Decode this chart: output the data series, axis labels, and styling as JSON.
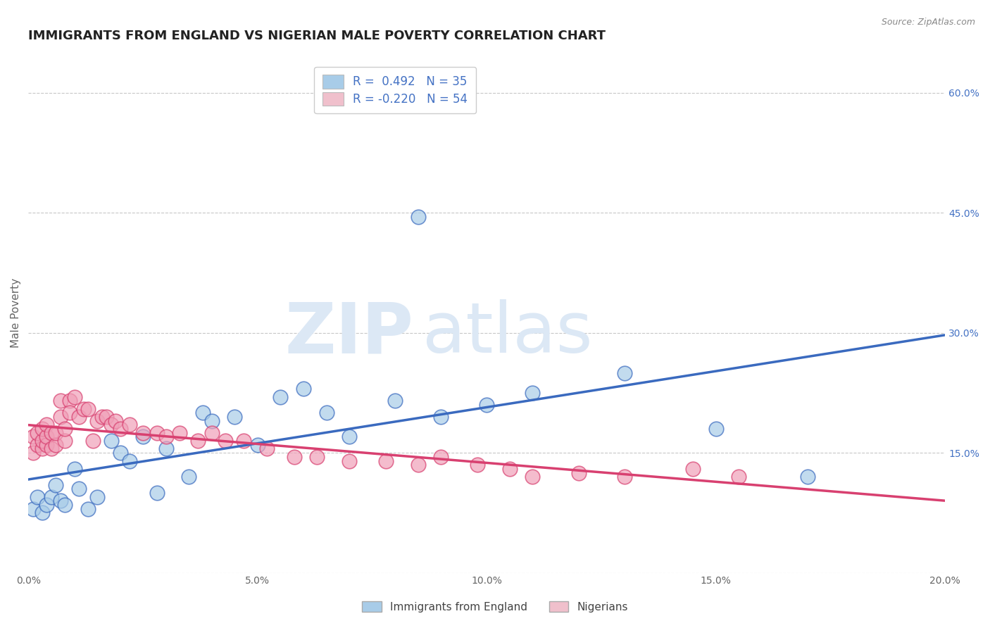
{
  "title": "IMMIGRANTS FROM ENGLAND VS NIGERIAN MALE POVERTY CORRELATION CHART",
  "source": "Source: ZipAtlas.com",
  "ylabel": "Male Poverty",
  "xlim": [
    0.0,
    0.2
  ],
  "ylim": [
    0.0,
    0.65
  ],
  "yticks": [
    0.0,
    0.15,
    0.3,
    0.45,
    0.6
  ],
  "ytick_labels": [
    "",
    "15.0%",
    "30.0%",
    "45.0%",
    "60.0%"
  ],
  "xticks": [
    0.0,
    0.05,
    0.1,
    0.15,
    0.2
  ],
  "xtick_labels": [
    "0.0%",
    "5.0%",
    "10.0%",
    "15.0%",
    "20.0%"
  ],
  "grid_color": "#c8c8c8",
  "background_color": "#ffffff",
  "series": [
    {
      "name": "Immigrants from England",
      "R": 0.492,
      "N": 35,
      "color": "#a8cce8",
      "line_color": "#3a6abf",
      "x": [
        0.001,
        0.002,
        0.003,
        0.004,
        0.005,
        0.006,
        0.007,
        0.008,
        0.01,
        0.011,
        0.013,
        0.015,
        0.018,
        0.02,
        0.022,
        0.025,
        0.028,
        0.03,
        0.035,
        0.038,
        0.04,
        0.045,
        0.05,
        0.055,
        0.06,
        0.065,
        0.07,
        0.08,
        0.085,
        0.09,
        0.1,
        0.11,
        0.13,
        0.15,
        0.17
      ],
      "y": [
        0.08,
        0.095,
        0.075,
        0.085,
        0.095,
        0.11,
        0.09,
        0.085,
        0.13,
        0.105,
        0.08,
        0.095,
        0.165,
        0.15,
        0.14,
        0.17,
        0.1,
        0.155,
        0.12,
        0.2,
        0.19,
        0.195,
        0.16,
        0.22,
        0.23,
        0.2,
        0.17,
        0.215,
        0.445,
        0.195,
        0.21,
        0.225,
        0.25,
        0.18,
        0.12
      ]
    },
    {
      "name": "Nigerians",
      "R": -0.22,
      "N": 54,
      "color": "#f0a0b8",
      "line_color": "#d84070",
      "x": [
        0.001,
        0.001,
        0.002,
        0.002,
        0.003,
        0.003,
        0.003,
        0.004,
        0.004,
        0.004,
        0.005,
        0.005,
        0.006,
        0.006,
        0.007,
        0.007,
        0.008,
        0.008,
        0.009,
        0.009,
        0.01,
        0.011,
        0.012,
        0.013,
        0.014,
        0.015,
        0.016,
        0.017,
        0.018,
        0.019,
        0.02,
        0.022,
        0.025,
        0.028,
        0.03,
        0.033,
        0.037,
        0.04,
        0.043,
        0.047,
        0.052,
        0.058,
        0.063,
        0.07,
        0.078,
        0.085,
        0.09,
        0.098,
        0.105,
        0.11,
        0.12,
        0.13,
        0.145,
        0.155
      ],
      "y": [
        0.15,
        0.17,
        0.16,
        0.175,
        0.155,
        0.165,
        0.18,
        0.16,
        0.17,
        0.185,
        0.155,
        0.175,
        0.16,
        0.175,
        0.215,
        0.195,
        0.165,
        0.18,
        0.215,
        0.2,
        0.22,
        0.195,
        0.205,
        0.205,
        0.165,
        0.19,
        0.195,
        0.195,
        0.185,
        0.19,
        0.18,
        0.185,
        0.175,
        0.175,
        0.17,
        0.175,
        0.165,
        0.175,
        0.165,
        0.165,
        0.155,
        0.145,
        0.145,
        0.14,
        0.14,
        0.135,
        0.145,
        0.135,
        0.13,
        0.12,
        0.125,
        0.12,
        0.13,
        0.12
      ]
    }
  ],
  "legend_box_colors": [
    "#a8cce8",
    "#f0c0cc"
  ],
  "legend_text_color": "#4472c4",
  "watermark_zip": "ZIP",
  "watermark_atlas": "atlas",
  "watermark_color": "#dce8f5",
  "title_fontsize": 13,
  "axis_fontsize": 11,
  "tick_fontsize": 10,
  "right_ytick_color": "#4472c4"
}
